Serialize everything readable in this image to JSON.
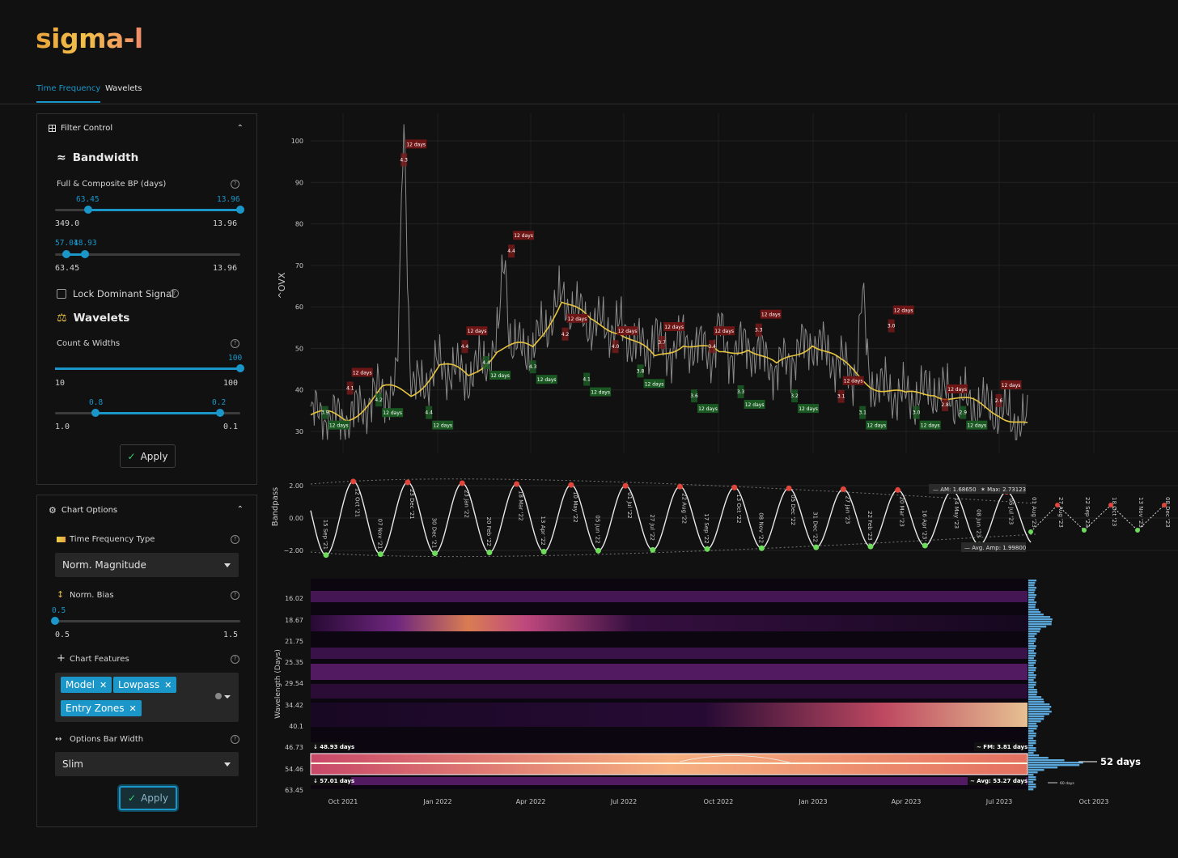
{
  "app": {
    "logo": "sigma-l"
  },
  "tabs": [
    {
      "label": "Time Frequency"
    },
    {
      "label": "Wavelets"
    }
  ],
  "filter_control": {
    "title": "Filter Control",
    "bandwidth": {
      "title": "Bandwidth",
      "label": "Full & Composite BP (days)",
      "slider1": {
        "val_low": "63.45",
        "val_high": "13.96",
        "min": "349.0",
        "max": "13.96",
        "low_pos": 0.18,
        "high_pos": 1.0
      },
      "slider2": {
        "val_low": "57.01",
        "val_high": "48.93",
        "min": "63.45",
        "max": "13.96",
        "low_pos": 0.06,
        "high_pos": 0.16
      }
    },
    "lock_label": "Lock Dominant Signal",
    "wavelets": {
      "title": "Wavelets",
      "label": "Count & Widths",
      "count": {
        "value": "100",
        "min": "10",
        "max": "100",
        "pos": 1.0
      },
      "widths": {
        "val_low": "0.8",
        "val_high": "0.2",
        "min": "1.0",
        "max": "0.1",
        "low_pos": 0.22,
        "high_pos": 0.89
      }
    },
    "apply_label": "Apply"
  },
  "chart_options": {
    "title": "Chart Options",
    "tf_type_label": "Time Frequency Type",
    "tf_type_value": "Norm. Magnitude",
    "bias_label": "Norm. Bias",
    "bias": {
      "value": "0.5",
      "min": "0.5",
      "max": "1.5",
      "pos": 0.0
    },
    "features_label": "Chart Features",
    "features": [
      "Model",
      "Lowpass",
      "Entry Zones"
    ],
    "bar_width_label": "Options Bar Width",
    "bar_width_value": "Slim",
    "apply_label": "Apply"
  },
  "colors": {
    "accent": "#1b96c9",
    "peak": "#7a1a1a",
    "trough": "#1c5a24",
    "lowpass": "#e6c440"
  },
  "chart_data": [
    {
      "type": "line",
      "ylabel": "^OVX",
      "yticks": [
        30,
        40,
        50,
        60,
        70,
        80,
        90,
        100
      ],
      "ylim": [
        28,
        105
      ],
      "series": [
        {
          "x": [
            0,
            0.05,
            0.1,
            0.14,
            0.18,
            0.22,
            0.26,
            0.31,
            0.35,
            0.39,
            0.43,
            0.48,
            0.52,
            0.57,
            0.61,
            0.65,
            0.7,
            0.74,
            0.78,
            0.83,
            0.87,
            0.91,
            0.96,
            1.0
          ],
          "values": [
            34,
            33,
            40,
            39,
            46,
            43,
            50,
            50,
            62,
            56,
            55,
            47,
            52,
            48,
            51,
            45,
            52,
            46,
            42,
            38,
            40,
            37,
            35,
            31
          ]
        }
      ],
      "peak_labels": [
        "4.1",
        "4.3",
        "4.4",
        "4.4",
        "4.2",
        "4.0",
        "3.7",
        "3.4",
        "3.3",
        "3.1",
        "3.0",
        "2.8",
        "2.6"
      ],
      "trough_labels": [
        "3.9",
        "4.2",
        "4.4",
        "4.4",
        "4.3",
        "4.1",
        "3.8",
        "3.6",
        "3.3",
        "3.2",
        "3.1",
        "3.0",
        "2.9"
      ],
      "cycle_label": "12 days"
    },
    {
      "type": "line",
      "ylabel": "Bandpass",
      "yticks": [
        "2.00",
        "0.00",
        "−2.00"
      ],
      "ylim": [
        -2.5,
        2.5
      ],
      "peaks": [
        "12 Oct '21",
        "23 Dec '21",
        "23 Jan '22",
        "18 Mar '22",
        "10 May '22",
        "01 Jul '22",
        "22 Aug '22",
        "13 Oct '22",
        "05 Dec '22",
        "27 Jan '23",
        "20 Mar '23",
        "14 May '23",
        "05 Jul '23"
      ],
      "troughs": [
        "15 Sep '21",
        "07 Nov '21",
        "30 Dec '21",
        "20 Feb '22",
        "13 Apr '22",
        "05 Jun '22",
        "27 Jul '22",
        "17 Sep '22",
        "08 Nov '22",
        "31 Dec '22",
        "22 Feb '23",
        "16 Apr '23",
        "08 Jun '23"
      ],
      "future": [
        "01 Aug '23",
        "27 Aug '23",
        "22 Sep '23",
        "18 Oct '23",
        "13 Nov '23",
        "08 Dec '23"
      ],
      "am": "AM: 1.68650",
      "max": "Max: 2.73123",
      "avg_amp": "Avg. Amp: 1.99800"
    },
    {
      "type": "heatmap",
      "ylabel": "Wavelength (Days)",
      "yticks": [
        "16.02",
        "18.67",
        "21.75",
        "25.35",
        "29.54",
        "34.42",
        "40.1",
        "46.73",
        "54.46",
        "63.45"
      ],
      "xticks": [
        "Oct 2021",
        "Jan 2022",
        "Apr 2022",
        "Jul 2022",
        "Oct 2022",
        "Jan 2023",
        "Apr 2023",
        "Jul 2023",
        "Oct 2023"
      ],
      "band_top": "48.93 days",
      "band_bottom": "57.01 days",
      "fm": "FM: 3.81 days",
      "avg": "Avg: 53.27 days",
      "dominant": "52 days",
      "secondary": "60 days"
    }
  ]
}
